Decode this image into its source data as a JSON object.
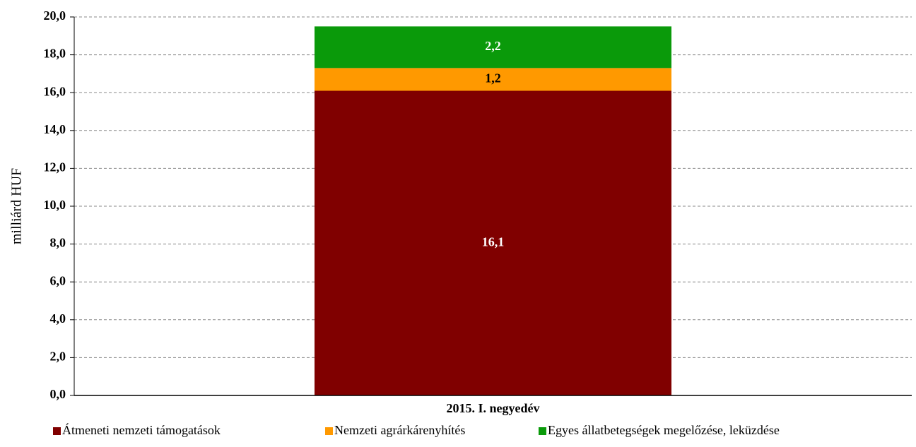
{
  "chart_data": {
    "type": "stacked_bar",
    "y_label": "milliárd HUF",
    "categories": [
      "2015. I. negyedév"
    ],
    "series": [
      {
        "name": "Átmeneti nemzeti támogatások",
        "color": "#800000",
        "values": [
          16.1
        ],
        "value_labels": [
          "16,1"
        ]
      },
      {
        "name": "Nemzeti agrárkárenyhítés",
        "color": "#ff9900",
        "values": [
          1.2
        ],
        "value_labels": [
          "1,2"
        ]
      },
      {
        "name": "Egyes állatbetegségek megelőzése, leküzdése",
        "color": "#0a9a0a",
        "values": [
          2.2
        ],
        "value_labels": [
          "2,2"
        ]
      }
    ],
    "ylim": [
      0,
      20
    ],
    "yticks": [
      {
        "value": 0,
        "label": "0,0"
      },
      {
        "value": 2,
        "label": "2,0"
      },
      {
        "value": 4,
        "label": "4,0"
      },
      {
        "value": 6,
        "label": "6,0"
      },
      {
        "value": 8,
        "label": "8,0"
      },
      {
        "value": 10,
        "label": "10,0"
      },
      {
        "value": 12,
        "label": "12,0"
      },
      {
        "value": 14,
        "label": "14,0"
      },
      {
        "value": 16,
        "label": "16,0"
      },
      {
        "value": 18,
        "label": "18,0"
      },
      {
        "value": 20,
        "label": "20,0"
      }
    ],
    "grid": true,
    "legend": "bottom"
  }
}
